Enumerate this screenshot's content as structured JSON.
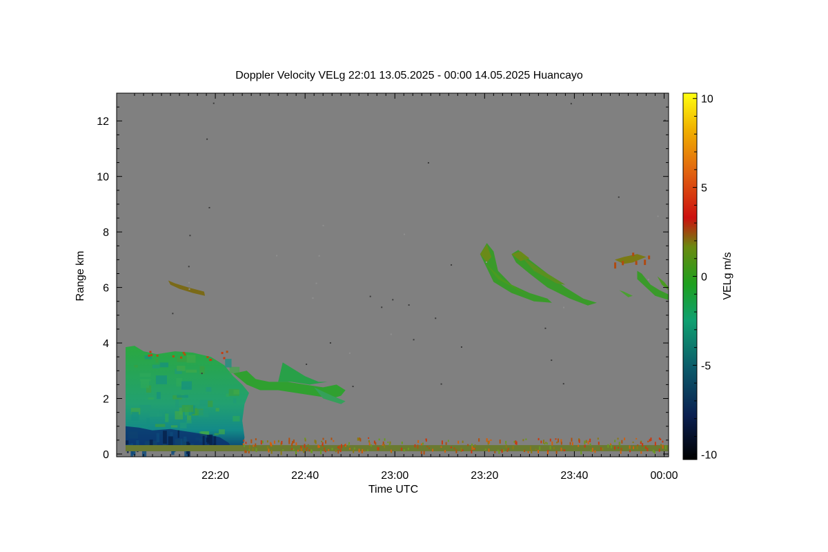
{
  "chart_data": {
    "type": "heatmap",
    "title": "Doppler Velocity VELg   22:01 13.05.2025 - 00:00 14.05.2025 Huancayo",
    "xlabel": "Time UTC",
    "ylabel": "Range km",
    "x_ticks": [
      "22:20",
      "22:40",
      "23:00",
      "23:20",
      "23:40",
      "00:00"
    ],
    "x_tick_minutes": [
      20,
      40,
      60,
      80,
      100,
      120
    ],
    "x_range_minutes": [
      -2,
      121
    ],
    "y_ticks": [
      "0",
      "2",
      "4",
      "6",
      "8",
      "10",
      "12"
    ],
    "y_range": [
      -0.1,
      13
    ],
    "colorbar": {
      "label": "VELg m/s",
      "ticks": [
        "10",
        "5",
        "0",
        "-5",
        "-10"
      ],
      "range": [
        -10.3,
        10.3
      ]
    },
    "background_color": "#808080",
    "features": [
      {
        "name": "low cloud block",
        "time_min": [
          0,
          27
        ],
        "range_km": [
          0.1,
          3.9
        ],
        "velocity": -3.5
      },
      {
        "name": "cloud tail",
        "time_min": [
          27,
          49
        ],
        "range_km": [
          1.8,
          3.4
        ],
        "velocity": -2
      },
      {
        "name": "streak 22:12",
        "time_min": [
          9.5,
          17.5
        ],
        "range_km": [
          5.8,
          6.3
        ],
        "velocity": 0.5
      },
      {
        "name": "streak 23:20",
        "time_min": [
          79,
          95
        ],
        "range_km": [
          5.4,
          7.6
        ],
        "velocity": -1.5
      },
      {
        "name": "streak 23:30",
        "time_min": [
          86,
          105
        ],
        "range_km": [
          5.3,
          7.3
        ],
        "velocity": -1.5
      },
      {
        "name": "streak 23:50",
        "time_min": [
          114,
          121
        ],
        "range_km": [
          5.6,
          6.6
        ],
        "velocity": -1.2
      },
      {
        "name": "surface clutter",
        "time_min": [
          0,
          121
        ],
        "range_km": [
          0.1,
          0.6
        ],
        "velocity": 1
      }
    ]
  }
}
